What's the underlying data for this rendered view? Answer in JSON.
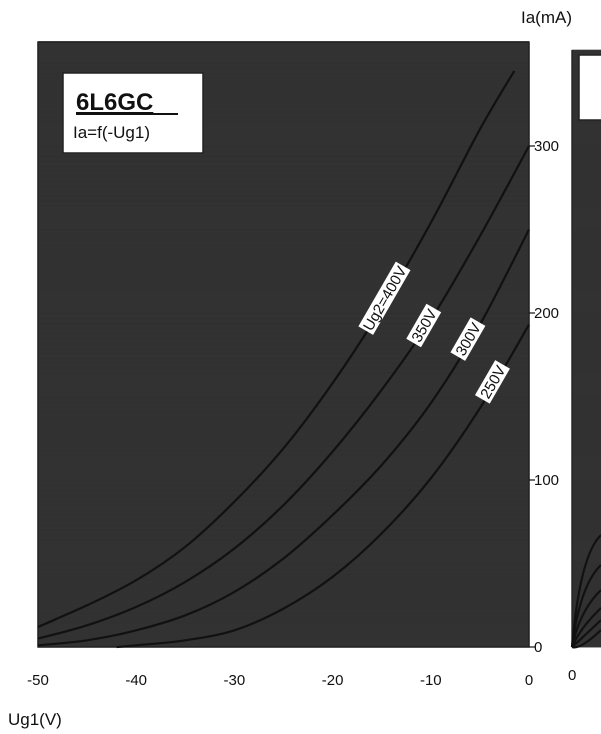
{
  "chart_data": {
    "type": "line",
    "title": "6L6GC",
    "subtitle": "Ia=f(-Ug1)",
    "xlabel": "Ug1(V)",
    "ylabel": "Ia(mA)",
    "xlim": [
      -50,
      0
    ],
    "ylim": [
      0,
      350
    ],
    "x_ticks": [
      "-50",
      "-40",
      "-30",
      "-20",
      "-10",
      "0"
    ],
    "y_ticks": [
      "0",
      "100",
      "200",
      "300"
    ],
    "grid": true,
    "series": [
      {
        "name": "Ug2=400V",
        "x": [
          -50,
          -45,
          -40,
          -35,
          -30,
          -25,
          -20,
          -15,
          -10,
          -5,
          -1.5
        ],
        "y": [
          12,
          25,
          40,
          60,
          87,
          119,
          158,
          203,
          254,
          310,
          345
        ]
      },
      {
        "name": "350V",
        "x": [
          -50,
          -45,
          -40,
          -35,
          -30,
          -25,
          -20,
          -15,
          -10,
          -5,
          0
        ],
        "y": [
          5,
          13,
          24,
          39,
          59,
          85,
          117,
          154,
          196,
          246,
          300
        ]
      },
      {
        "name": "300V",
        "x": [
          -50,
          -45,
          -40,
          -35,
          -30,
          -25,
          -20,
          -15,
          -10,
          -5,
          0
        ],
        "y": [
          1,
          4,
          10,
          19,
          33,
          53,
          79,
          109,
          146,
          193,
          250
        ]
      },
      {
        "name": "250V",
        "x": [
          -42,
          -40,
          -35,
          -30,
          -25,
          -20,
          -15,
          -10,
          -5,
          0
        ],
        "y": [
          0,
          1,
          4,
          10,
          23,
          42,
          68,
          101,
          143,
          193
        ]
      }
    ],
    "right_axis_ticks": [
      "0"
    ]
  }
}
